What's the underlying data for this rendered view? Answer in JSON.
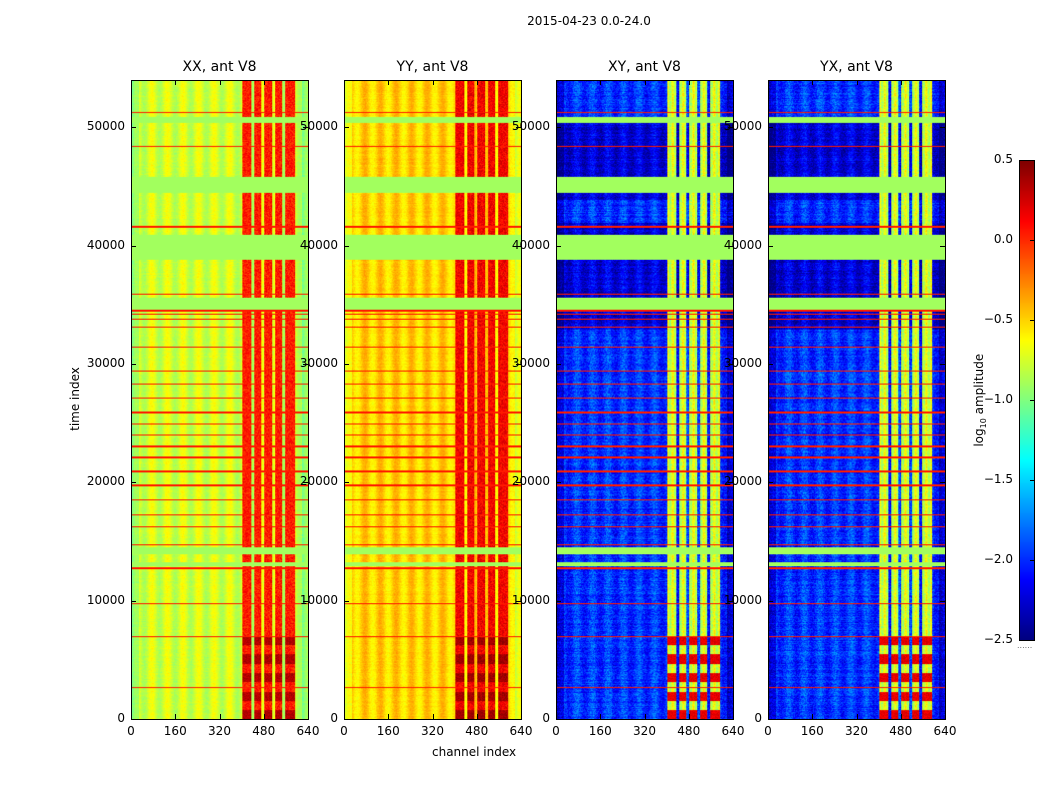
{
  "suptitle": "2015-04-23 0.0-24.0",
  "xlabel": "channel index",
  "ylabel": "time index",
  "colorbar": {
    "label_prefix": "log",
    "label_sub": "10",
    "label_suffix": " amplitude",
    "ticks": [
      "0.5",
      "0.0",
      "−0.5",
      "−1.0",
      "−1.5",
      "−2.0",
      "−2.5"
    ],
    "tick_values": [
      0.5,
      0.0,
      -0.5,
      -1.0,
      -1.5,
      -2.0,
      -2.5
    ],
    "range": [
      -2.5,
      0.5
    ],
    "dots": "......"
  },
  "chart_data": {
    "type": "heatmap",
    "colormap": "jet",
    "xlim": [
      0,
      640
    ],
    "ylim": [
      0,
      54000
    ],
    "x_ticks": [
      "0",
      "160",
      "320",
      "480",
      "640"
    ],
    "x_tick_values": [
      0,
      160,
      320,
      480,
      640
    ],
    "y_ticks": [
      "0",
      "10000",
      "20000",
      "30000",
      "40000",
      "50000"
    ],
    "y_tick_values": [
      0,
      10000,
      20000,
      30000,
      40000,
      50000
    ],
    "panels": [
      {
        "title": "XX, ant V8",
        "base": -0.68,
        "band": 0.05,
        "low_time_band": 0.35
      },
      {
        "title": "YY, ant V8",
        "base": -0.42,
        "band": 0.15,
        "low_time_band": 0.4
      },
      {
        "title": "XY, ant V8",
        "base": -1.95,
        "band": -0.75,
        "low_time_band": 0.2
      },
      {
        "title": "YX, ant V8",
        "base": -1.95,
        "band": -0.75,
        "low_time_band": 0.2
      }
    ],
    "bright_channel_bands": [
      [
        400,
        432
      ],
      [
        442,
        468
      ],
      [
        478,
        508
      ],
      [
        520,
        545
      ],
      [
        556,
        590
      ]
    ],
    "flagged_time_blocks": [
      [
        38900,
        41000
      ],
      [
        34700,
        35700
      ],
      [
        44600,
        45900
      ],
      [
        50500,
        51000
      ],
      [
        14000,
        14600
      ],
      [
        13000,
        13300
      ]
    ],
    "flagged_value": -0.9,
    "red_time_rows": [
      51400,
      48500,
      45900,
      41700,
      36000,
      34600,
      34300,
      33900,
      33200,
      31500,
      29500,
      28400,
      27200,
      26000,
      25000,
      24100,
      23100,
      22200,
      21000,
      19800,
      18600,
      17300,
      16300,
      14800,
      14100,
      12800,
      9800,
      7000,
      2700
    ],
    "red_value": 0.05
  }
}
